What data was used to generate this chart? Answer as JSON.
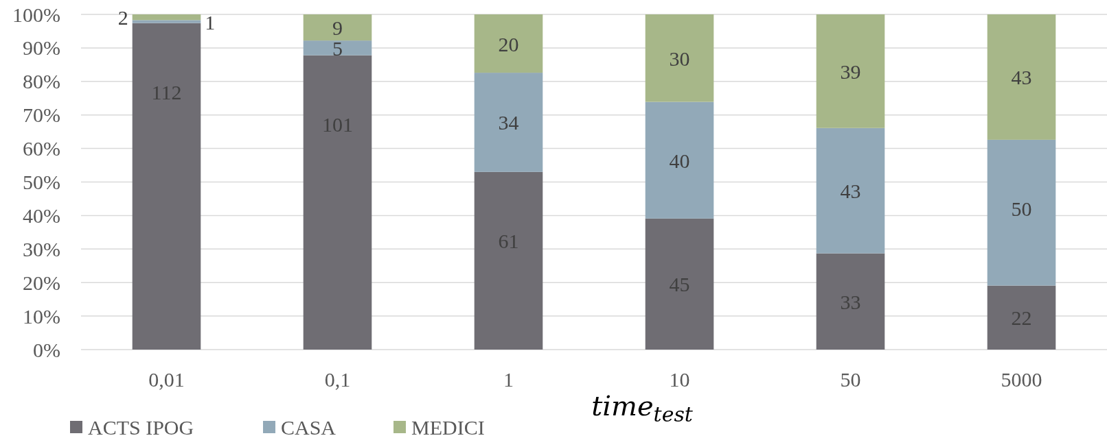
{
  "chart_data": {
    "type": "bar",
    "stacked": true,
    "categories": [
      "0,01",
      "0,1",
      "1",
      "10",
      "50",
      "5000"
    ],
    "xlabel": "time$_{test}$",
    "ylim": [
      0,
      100
    ],
    "yticks": [
      {
        "value": 0,
        "label": "0%"
      },
      {
        "value": 10,
        "label": "10%"
      },
      {
        "value": 20,
        "label": "20%"
      },
      {
        "value": 30,
        "label": "30%"
      },
      {
        "value": 40,
        "label": "40%"
      },
      {
        "value": 50,
        "label": "50%"
      },
      {
        "value": 60,
        "label": "60%"
      },
      {
        "value": 70,
        "label": "70%"
      },
      {
        "value": 80,
        "label": "80%"
      },
      {
        "value": 90,
        "label": "90%"
      },
      {
        "value": 100,
        "label": "100%"
      }
    ],
    "grid": "y",
    "legend": "bottom left",
    "series": [
      {
        "name": "ACTS IPOG",
        "color": "#6f6d73",
        "values": [
          97.4,
          87.8,
          53.0,
          39.1,
          28.7,
          19.1
        ]
      },
      {
        "name": "CASA",
        "color": "#92a9b8",
        "values": [
          0.9,
          4.4,
          29.6,
          34.8,
          37.4,
          43.5
        ]
      },
      {
        "name": "MEDICI",
        "color": "#a7b789",
        "values": [
          1.7,
          7.8,
          17.4,
          26.1,
          33.9,
          37.4
        ]
      }
    ],
    "annotations": [
      {
        "text": "112",
        "x": "0,01",
        "y": 97.4
      },
      {
        "text": "1",
        "x": "0,01",
        "y": 98.3
      },
      {
        "text": "2",
        "x": "0,01",
        "y": 100
      },
      {
        "text": "101",
        "x": "0,1",
        "y": 87.8
      },
      {
        "text": "5",
        "x": "0,1",
        "y": 92.2
      },
      {
        "text": "9",
        "x": "0,1",
        "y": 100
      },
      {
        "text": "61",
        "x": "1",
        "y": 53.0
      },
      {
        "text": "34",
        "x": "1",
        "y": 82.6
      },
      {
        "text": "20",
        "x": "1",
        "y": 100
      },
      {
        "text": "45",
        "x": "10",
        "y": 39.1
      },
      {
        "text": "40",
        "x": "10",
        "y": 73.9
      },
      {
        "text": "30",
        "x": "10",
        "y": 100
      },
      {
        "text": "33",
        "x": "50",
        "y": 28.7
      },
      {
        "text": "43",
        "x": "50",
        "y": 66.1
      },
      {
        "text": "39",
        "x": "50",
        "y": 100
      },
      {
        "text": "22",
        "x": "5000",
        "y": 19.1
      },
      {
        "text": "50",
        "x": "5000",
        "y": 62.6
      },
      {
        "text": "43",
        "x": "5000",
        "y": 100
      }
    ]
  }
}
